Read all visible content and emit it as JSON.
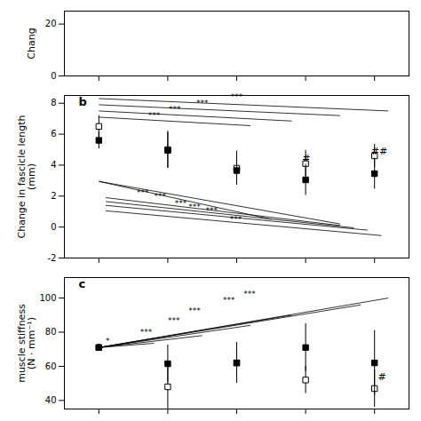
{
  "chart_data": [
    {
      "type": "scatter",
      "ylabel": "Chang",
      "xlim": [
        0.5,
        5.5
      ],
      "xticks": [
        1,
        2,
        3,
        4,
        5
      ],
      "ylim": [
        0,
        25
      ],
      "yticks": [
        0,
        20
      ],
      "tick_labels": "y",
      "series": []
    },
    {
      "type": "scatter",
      "title": "b",
      "ylabel": "Change in fascicle length\n(mm)",
      "x": [
        1,
        2,
        3,
        4,
        5
      ],
      "xlim": [
        0.5,
        5.5
      ],
      "xticks": [
        1,
        2,
        3,
        4,
        5
      ],
      "ylim": [
        -2,
        8.5
      ],
      "yticks": [
        -2,
        0,
        2,
        4,
        6,
        8
      ],
      "tick_labels": "y",
      "series": [
        {
          "marker": "square_open",
          "color": "black",
          "values": [
            6.5,
            5.0,
            3.8,
            4.1,
            4.6
          ],
          "errors": [
            0.7,
            1.2,
            1.1,
            0.85,
            0.75
          ]
        },
        {
          "marker": "square",
          "color": "black",
          "values": [
            5.6,
            4.95,
            3.65,
            3.05,
            3.45
          ],
          "errors": [
            0.55,
            1.15,
            0.85,
            1.0,
            1.0
          ]
        }
      ],
      "sig_top_lines": [
        {
          "x1": 1.0,
          "y1": 8.3,
          "x2": 5.2,
          "y2": 7.5,
          "label_x": 3.0,
          "label_y": 8.25,
          "label": "***"
        },
        {
          "x1": 1.0,
          "y1": 7.9,
          "x2": 4.5,
          "y2": 7.2,
          "label_x": 2.5,
          "label_y": 7.85,
          "label": "***"
        },
        {
          "x1": 1.0,
          "y1": 7.5,
          "x2": 3.8,
          "y2": 6.85,
          "label_x": 2.1,
          "label_y": 7.45,
          "label": "***"
        },
        {
          "x1": 1.0,
          "y1": 7.1,
          "x2": 3.2,
          "y2": 6.55,
          "label_x": 1.8,
          "label_y": 7.05,
          "label": "***"
        }
      ],
      "sig_bottom_lines": [
        {
          "x1": 1.0,
          "y1": 2.95,
          "x2": 3.5,
          "y2": 0.5,
          "label_x": 1.55,
          "label_y": 2.2,
          "label": "***"
        },
        {
          "x1": 1.0,
          "y1": 2.95,
          "x2": 4.5,
          "y2": 0.2,
          "label_x": 1.8,
          "label_y": 2.0,
          "label": "***"
        },
        {
          "x1": 1.1,
          "y1": 1.9,
          "x2": 4.5,
          "y2": 0.1,
          "label_x": 2.1,
          "label_y": 1.55,
          "label": "***"
        },
        {
          "x1": 1.1,
          "y1": 1.65,
          "x2": 4.7,
          "y2": -0.05,
          "label_x": 2.3,
          "label_y": 1.3,
          "label": "***"
        },
        {
          "x1": 1.1,
          "y1": 1.4,
          "x2": 4.9,
          "y2": -0.2,
          "label_x": 2.55,
          "label_y": 1.05,
          "label": "***"
        },
        {
          "x1": 1.1,
          "y1": 1.05,
          "x2": 5.1,
          "y2": -0.55,
          "label_x": 2.9,
          "label_y": 0.5,
          "label": "***"
        }
      ],
      "annotations": [
        {
          "x": 3.95,
          "y": 4.25,
          "text": "#"
        },
        {
          "x": 4.95,
          "y": 4.7,
          "text": "##"
        }
      ]
    },
    {
      "type": "scatter",
      "title": "c",
      "ylabel": "muscle stiffness\n(N · mm⁻¹)",
      "x": [
        1,
        2,
        3,
        4,
        5
      ],
      "xlim": [
        0.5,
        5.5
      ],
      "xticks": [
        1,
        2,
        3,
        4,
        5
      ],
      "ylim": [
        35,
        112
      ],
      "yticks": [
        40,
        60,
        80,
        100
      ],
      "tick_labels": "y",
      "series": [
        {
          "marker": "square_open",
          "color": "black",
          "values": [
            71.0,
            48.0,
            62.0,
            52.0,
            47.0
          ],
          "errors": [
            2.0,
            13.0,
            8.0,
            8.0,
            11.0
          ]
        },
        {
          "marker": "square",
          "color": "black",
          "values": [
            71.0,
            61.5,
            62.0,
            71.0,
            62.0
          ],
          "errors": [
            2.0,
            11.0,
            12.0,
            14.0,
            19.0
          ]
        }
      ],
      "sig_lines": [
        {
          "x1": 1.0,
          "y1": 71.0,
          "x2": 5.2,
          "y2": 100.0,
          "label_x": 3.1,
          "label_y": 101.0,
          "label": "***"
        },
        {
          "x1": 1.0,
          "y1": 71.0,
          "x2": 4.8,
          "y2": 96.0,
          "label_x": 2.8,
          "label_y": 97.0,
          "label": "***"
        },
        {
          "x1": 1.0,
          "y1": 71.0,
          "x2": 3.8,
          "y2": 90.0,
          "label_x": 2.3,
          "label_y": 91.0,
          "label": "***"
        },
        {
          "x1": 1.0,
          "y1": 71.0,
          "x2": 3.2,
          "y2": 84.0,
          "label_x": 2.0,
          "label_y": 85.0,
          "label": "***"
        },
        {
          "x1": 1.0,
          "y1": 71.0,
          "x2": 2.5,
          "y2": 78.0,
          "label_x": 1.6,
          "label_y": 78.5,
          "label": "***"
        },
        {
          "x1": 1.0,
          "y1": 71.0,
          "x2": 1.8,
          "y2": 73.5,
          "label_x": 1.1,
          "label_y": 73.5,
          "label": "*"
        }
      ],
      "annotations": [
        {
          "x": 5.05,
          "y": 52.0,
          "text": "#"
        }
      ]
    }
  ]
}
